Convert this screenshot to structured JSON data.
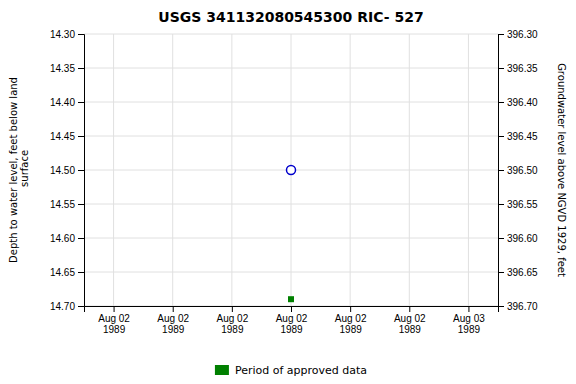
{
  "chart_data": {
    "type": "scatter",
    "title": "USGS 341132080545300 RIC- 527",
    "y_label": "Depth to water level, feet below land\n surface",
    "y2_label": "Groundwater level above NGVD 1929, feet",
    "categories": [
      "Aug 02\n1989",
      "Aug 02\n1989",
      "Aug 02\n1989",
      "Aug 02\n1989",
      "Aug 02\n1989",
      "Aug 02\n1989",
      "Aug 03\n1989"
    ],
    "series": [
      {
        "color": "#0000cc",
        "marker": "open-circle",
        "values": [
          null,
          null,
          null,
          14.5,
          null,
          null,
          null
        ]
      },
      {
        "name": "Period of approved data",
        "color": "#008000",
        "marker": "square",
        "values": [
          null,
          null,
          null,
          14.69,
          null,
          null,
          null
        ]
      }
    ],
    "ylim": [
      14.7,
      14.3
    ],
    "yticks": [
      {
        "value": 14.3,
        "label": "14.30"
      },
      14.35,
      {
        "value": 14.4,
        "label": "14.40"
      },
      14.45,
      {
        "value": 14.5,
        "label": "14.50"
      },
      14.55,
      {
        "value": 14.6,
        "label": "14.60"
      },
      14.65,
      {
        "value": 14.7,
        "label": "14.70"
      }
    ],
    "y2lim": [
      396.7,
      396.3
    ],
    "y2ticks": [
      {
        "value": 396.7,
        "label": "396.70"
      },
      396.65,
      {
        "value": 396.6,
        "label": "396.60"
      },
      396.55,
      {
        "value": 396.5,
        "label": "396.50"
      },
      396.45,
      {
        "value": 396.4,
        "label": "396.40"
      },
      396.35,
      {
        "value": 396.3,
        "label": "396.30"
      }
    ],
    "grid": true,
    "legend": "bottom"
  }
}
